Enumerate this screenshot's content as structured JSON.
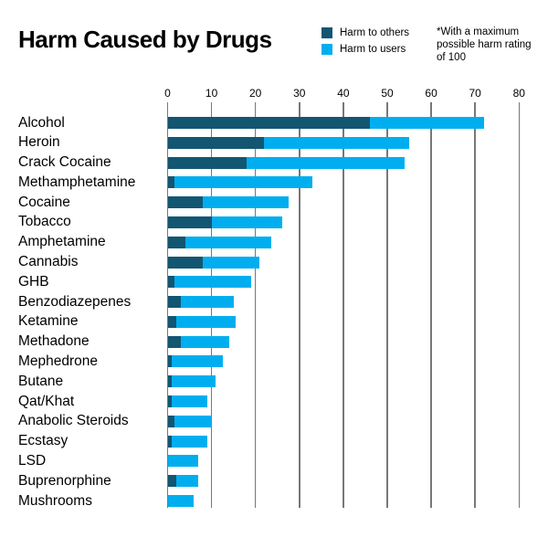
{
  "title": "Harm Caused by Drugs",
  "note": "*With a maximum possible harm rating of 100",
  "legend": {
    "items": [
      {
        "label": "Harm to others",
        "color": "#125672"
      },
      {
        "label": "Harm to users",
        "color": "#00AEEF"
      }
    ]
  },
  "colors": {
    "harm_to_others": "#125672",
    "harm_to_users": "#00AEEF",
    "gridline": "#787878",
    "text": "#000000",
    "background": "#ffffff"
  },
  "chart_data": {
    "type": "bar",
    "orientation": "horizontal",
    "stacked": true,
    "title": "Harm Caused by Drugs",
    "xlabel": "",
    "ylabel": "",
    "xlim": [
      0,
      80
    ],
    "x_ticks": [
      0,
      10,
      20,
      30,
      40,
      50,
      60,
      70,
      80
    ],
    "grid": true,
    "legend_position": "top-right",
    "annotation": "*With a maximum possible harm rating of 100",
    "categories": [
      "Alcohol",
      "Heroin",
      "Crack Cocaine",
      "Methamphetamine",
      "Cocaine",
      "Tobacco",
      "Amphetamine",
      "Cannabis",
      "GHB",
      "Benzodiazepenes",
      "Ketamine",
      "Methadone",
      "Mephedrone",
      "Butane",
      "Qat/Khat",
      "Anabolic Steroids",
      "Ecstasy",
      "LSD",
      "Buprenorphine",
      "Mushrooms"
    ],
    "series": [
      {
        "name": "Harm to others",
        "color": "#125672",
        "values": [
          46,
          22,
          18,
          1.5,
          8,
          10,
          4,
          8,
          1.5,
          3,
          2,
          3,
          1,
          1,
          1,
          1.5,
          1,
          0,
          2,
          0
        ]
      },
      {
        "name": "Harm to users",
        "color": "#00AEEF",
        "values": [
          26,
          33,
          36,
          31.5,
          19.5,
          16,
          19.5,
          13,
          17.5,
          12,
          13.5,
          11,
          11.5,
          10,
          8,
          8.5,
          8,
          7,
          5,
          6
        ]
      }
    ],
    "totals": [
      72,
      55,
      54,
      33,
      27.5,
      26,
      23.5,
      21,
      19,
      15,
      15.5,
      14,
      12.5,
      11,
      9,
      10,
      9,
      7,
      7,
      6
    ]
  }
}
